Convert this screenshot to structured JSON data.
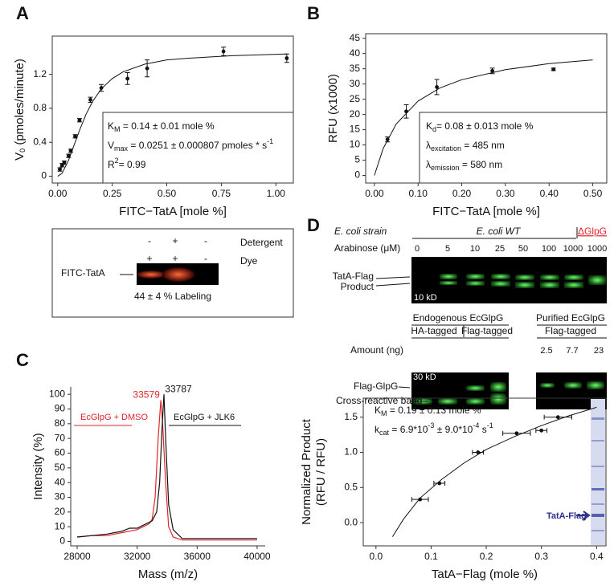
{
  "chart_data": [
    {
      "type": "scatter",
      "panel": "A",
      "xlabel": "FITC−TatA [mole %]",
      "ylabel": [
        {
          "t": "V"
        },
        {
          "t": "0",
          "s": "sub"
        },
        {
          "t": " (pmoles/minute)"
        }
      ],
      "xlim": [
        -0.025,
        1.08
      ],
      "ylim": [
        -0.08,
        1.65
      ],
      "xticks": [
        {
          "value": 0,
          "label": "0.00"
        },
        0.25,
        {
          "value": 0.5,
          "label": "0.50"
        },
        0.75,
        {
          "value": 1,
          "label": "1.00"
        }
      ],
      "yticks": [
        0,
        0.4,
        0.8,
        1.2
      ],
      "series": [
        {
          "color": "#111111",
          "x": [
            0.01,
            0.02,
            0.03,
            0.05,
            0.06,
            0.08,
            0.1,
            0.15,
            0.2,
            0.32,
            0.41,
            0.76,
            1.05
          ],
          "values": [
            0.08,
            0.13,
            0.16,
            0.24,
            0.3,
            0.47,
            0.66,
            0.9,
            1.04,
            1.15,
            1.27,
            1.47,
            1.39
          ],
          "errors": [
            0.02,
            0.02,
            0.02,
            0.02,
            0.02,
            0.02,
            0.02,
            0.03,
            0.04,
            0.07,
            0.1,
            0.05,
            0.05
          ]
        }
      ],
      "fit": {
        "x": [
          0,
          0.02,
          0.05,
          0.08,
          0.1,
          0.13,
          0.16,
          0.2,
          0.25,
          0.3,
          0.4,
          0.5,
          0.6,
          0.8,
          1.05
        ],
        "values": [
          0,
          0.034,
          0.19,
          0.4,
          0.54,
          0.73,
          0.88,
          1.03,
          1.15,
          1.23,
          1.32,
          1.37,
          1.39,
          1.42,
          1.44
        ]
      },
      "annotation": [
        [
          {
            "t": "K"
          },
          {
            "t": "M",
            "s": "sub"
          },
          {
            "t": " = 0.14 ± 0.01 mole %"
          }
        ],
        [
          {
            "t": "V"
          },
          {
            "t": "max",
            "s": "sub"
          },
          {
            "t": " = 0.0251 ± 0.000807 pmoles * s"
          },
          {
            "t": "-1",
            "s": "sup"
          }
        ],
        [
          {
            "t": "R"
          },
          {
            "t": "2",
            "s": "sup"
          },
          {
            "t": "= 0.99"
          }
        ]
      ]
    },
    {
      "type": "scatter",
      "panel": "B",
      "xlabel": "FITC−TatA [mole %]",
      "ylabel": [
        {
          "t": "RFU (x1000)"
        }
      ],
      "xlim": [
        -0.02,
        0.532
      ],
      "ylim": [
        -2.5,
        46.5
      ],
      "xticks": [
        {
          "value": 0,
          "label": "0.00"
        },
        {
          "value": 0.1,
          "label": "0.10"
        },
        {
          "value": 0.2,
          "label": "0.20"
        },
        {
          "value": 0.3,
          "label": "0.30"
        },
        {
          "value": 0.4,
          "label": "0.40"
        },
        {
          "value": 0.5,
          "label": "0.50"
        }
      ],
      "yticks": [
        0,
        5,
        10,
        15,
        20,
        25,
        30,
        35,
        40,
        45
      ],
      "series": [
        {
          "color": "#111111",
          "x": [
            0.03,
            0.073,
            0.143,
            0.27,
            0.41
          ],
          "values": [
            11.8,
            21,
            29,
            34.3,
            34.8
          ],
          "errors": [
            0.8,
            2.2,
            2.5,
            0.9,
            0.4
          ]
        }
      ],
      "fit": {
        "x": [
          0,
          0.02,
          0.05,
          0.1,
          0.15,
          0.2,
          0.3,
          0.4,
          0.5
        ],
        "values": [
          0,
          8.8,
          16.9,
          24.4,
          28.7,
          31.4,
          34.7,
          36.7,
          37.9
        ]
      },
      "annotation": [
        [
          {
            "t": "K"
          },
          {
            "t": "d",
            "s": "sub"
          },
          {
            "t": "= 0.08 ± 0.013 mole %"
          }
        ],
        [
          {
            "t": "λ"
          },
          {
            "t": "excitation",
            "s": "sub"
          },
          {
            "t": " = 485 nm"
          }
        ],
        [
          {
            "t": "λ"
          },
          {
            "t": "emission",
            "s": "sub"
          },
          {
            "t": " = 580 nm"
          }
        ]
      ]
    },
    {
      "type": "line",
      "panel": "C",
      "xlabel": "Mass (m/z)",
      "ylabel": [
        {
          "t": "Intensity (%)"
        }
      ],
      "xlim": [
        27570,
        40540
      ],
      "ylim": [
        -3,
        105
      ],
      "xticks": [
        28000,
        32000,
        36000,
        40000
      ],
      "yticks": [
        0,
        10,
        20,
        30,
        40,
        50,
        60,
        70,
        80,
        90,
        100
      ],
      "series": [
        {
          "name": "EcGlpG + DMSO",
          "color": "#e0262b",
          "peak": 33579,
          "x": [
            28000,
            29000,
            30000,
            30500,
            31000,
            31500,
            32000,
            32400,
            32800,
            33000,
            33200,
            33400,
            33579,
            33700,
            33900,
            34100,
            34400,
            35000,
            36000,
            38000,
            40000
          ],
          "values": [
            3,
            4,
            4,
            5,
            6,
            7,
            8,
            10,
            12,
            15,
            30,
            70,
            96,
            80,
            40,
            10,
            3,
            1,
            1,
            1,
            1
          ]
        },
        {
          "name": "EcGlpG + JLK6",
          "color": "#111111",
          "peak": 33787,
          "x": [
            28000,
            29000,
            30000,
            30500,
            31000,
            31500,
            32000,
            32400,
            32800,
            33000,
            33300,
            33500,
            33650,
            33787,
            33900,
            34100,
            34400,
            35000,
            36000,
            38000,
            40000
          ],
          "values": [
            3,
            4,
            5,
            6,
            7,
            9,
            9,
            11,
            13,
            14,
            20,
            40,
            75,
            100,
            70,
            25,
            8,
            2,
            2,
            2,
            2
          ]
        }
      ]
    },
    {
      "type": "scatter",
      "panel": "D",
      "xlabel": "TatA−Flag (mole %)",
      "ylabel": [
        {
          "t": "Normalized Product"
        }
      ],
      "ylabel2": "(RFU / RFU)",
      "xlim": [
        -0.023,
        0.417
      ],
      "ylim": [
        -0.33,
        1.77
      ],
      "xticks": [
        {
          "value": 0,
          "label": "0.0"
        },
        0.1,
        0.2,
        0.3,
        0.4
      ],
      "yticks": [
        {
          "value": 0,
          "label": "0.0"
        },
        0.5,
        {
          "value": 1,
          "label": "1.0"
        },
        1.5
      ],
      "series": [
        {
          "color": "#111111",
          "x": [
            0.08,
            0.115,
            0.185,
            0.255,
            0.3,
            0.33
          ],
          "values": [
            0.33,
            0.56,
            1.0,
            1.27,
            1.31,
            1.5
          ],
          "xerrors": [
            0.015,
            0.01,
            0.01,
            0.025,
            0.01,
            0.025
          ]
        }
      ],
      "fit": {
        "x": [
          0.03,
          0.05,
          0.08,
          0.12,
          0.16,
          0.2,
          0.25,
          0.3,
          0.35,
          0.4
        ],
        "values": [
          -0.2,
          0.05,
          0.35,
          0.62,
          0.85,
          1.04,
          1.22,
          1.38,
          1.52,
          1.64
        ]
      },
      "annotation": [
        [
          {
            "t": "K"
          },
          {
            "t": "M",
            "s": "sub"
          },
          {
            "t": " = 0.19 ± 0.13 mole %"
          }
        ],
        [
          {
            "t": "k"
          },
          {
            "t": "cat",
            "s": "sub"
          },
          {
            "t": " = 6.9*10"
          },
          {
            "t": "-3",
            "s": "sup"
          },
          {
            "t": " ± 9.0*10"
          },
          {
            "t": "-4",
            "s": "sup"
          },
          {
            "t": " s"
          },
          {
            "t": "-1",
            "s": "sup"
          }
        ]
      ],
      "lane_label": "TatA-Flag"
    }
  ],
  "gel_A": {
    "lane_label": "FITC-TatA",
    "detergent_label": "Detergent",
    "dye_label": "Dye",
    "detergent": [
      "-",
      "+",
      "-"
    ],
    "dye": [
      "+",
      "+",
      "-"
    ],
    "caption": "44 ± 4 % Labeling"
  },
  "gel_D1": {
    "strain_label": "E. coli strain",
    "wt_label": "E. coli WT",
    "ko_label": "ΔGlpG",
    "arabinose_label": "Arabinose (μM)",
    "arabinose": [
      0,
      5,
      10,
      25,
      50,
      100,
      1000,
      1000
    ],
    "bands": [
      "TatA-Flag",
      "Product"
    ],
    "marker": "10 kD"
  },
  "gel_D2": {
    "groups": [
      "Endogenous EcGlpG",
      "Purified EcGlpG"
    ],
    "subgroups": [
      "HA-tagged",
      "Flag-tagged",
      "Flag-tagged"
    ],
    "amount_label": "Amount (ng)",
    "amounts": [
      2.5,
      7.7,
      23
    ],
    "marker": "30 kD",
    "bands": [
      "Flag-GlpG",
      "Cross-reactive band"
    ]
  }
}
